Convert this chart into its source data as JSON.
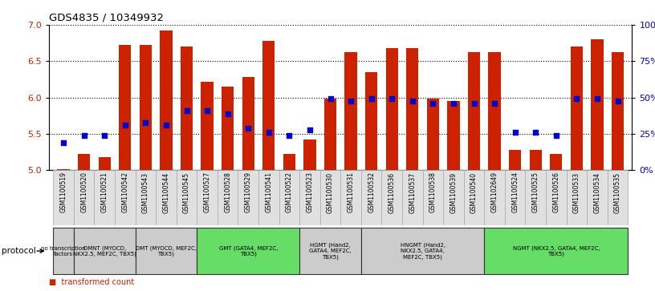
{
  "title": "GDS4835 / 10349932",
  "samples": [
    "GSM1100519",
    "GSM1100520",
    "GSM1100521",
    "GSM1100542",
    "GSM1100543",
    "GSM1100544",
    "GSM1100545",
    "GSM1100527",
    "GSM1100528",
    "GSM1100529",
    "GSM1100541",
    "GSM1100522",
    "GSM1100523",
    "GSM1100530",
    "GSM1100531",
    "GSM1100532",
    "GSM1100536",
    "GSM1100537",
    "GSM1100538",
    "GSM1100539",
    "GSM1100540",
    "GSM1102649",
    "GSM1100524",
    "GSM1100525",
    "GSM1100526",
    "GSM1100533",
    "GSM1100534",
    "GSM1100535"
  ],
  "bar_values": [
    5.02,
    5.22,
    5.18,
    6.72,
    6.72,
    6.92,
    6.7,
    6.22,
    6.15,
    6.28,
    6.78,
    5.22,
    5.42,
    5.98,
    6.62,
    6.35,
    6.68,
    6.68,
    5.98,
    5.95,
    6.62,
    6.62,
    5.28,
    5.28,
    5.22,
    6.7,
    6.8,
    6.62
  ],
  "dot_values": [
    5.38,
    5.48,
    5.48,
    5.62,
    5.65,
    5.62,
    5.82,
    5.82,
    5.78,
    5.58,
    5.52,
    5.48,
    5.55,
    5.98,
    5.95,
    5.98,
    5.98,
    5.95,
    5.92,
    5.92,
    5.92,
    5.92,
    5.52,
    5.52,
    5.48,
    5.98,
    5.98,
    5.95
  ],
  "ylim_low": 5.0,
  "ylim_high": 7.0,
  "ytick_vals": [
    5.0,
    5.5,
    6.0,
    6.5,
    7.0
  ],
  "bar_color": "#cc2200",
  "dot_color": "#0000cc",
  "groups": [
    {
      "label": "no transcription\nfactors",
      "start": 0,
      "end": 0,
      "color": "#cccccc"
    },
    {
      "label": "DMNT (MYOCD,\nNKX2.5, MEF2C, TBX5)",
      "start": 1,
      "end": 3,
      "color": "#cccccc"
    },
    {
      "label": "DMT (MYOCD, MEF2C,\nTBX5)",
      "start": 4,
      "end": 6,
      "color": "#cccccc"
    },
    {
      "label": "GMT (GATA4, MEF2C,\nTBX5)",
      "start": 7,
      "end": 11,
      "color": "#66dd66"
    },
    {
      "label": "HGMT (Hand2,\nGATA4, MEF2C,\nTBX5)",
      "start": 12,
      "end": 14,
      "color": "#cccccc"
    },
    {
      "label": "HNGMT (Hand2,\nNKX2.5, GATA4,\nMEF2C, TBX5)",
      "start": 15,
      "end": 20,
      "color": "#cccccc"
    },
    {
      "label": "NGMT (NKX2.5, GATA4, MEF2C,\nTBX5)",
      "start": 21,
      "end": 27,
      "color": "#66dd66"
    }
  ]
}
